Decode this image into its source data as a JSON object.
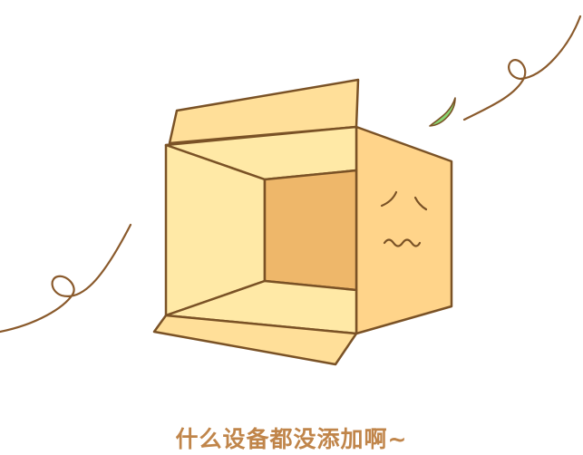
{
  "empty_state": {
    "message": "什么设备都没添加啊~",
    "illustration_icon": "empty-open-box-icon"
  },
  "colors": {
    "message_text": "#c0854a",
    "outline": "#7a5226",
    "box_front": "#ffe9a6",
    "box_flap": "#ffdf99",
    "box_side": "#ffd48a",
    "box_inside_back": "#eeb76a",
    "leaf": "#88d672",
    "curl_line": "#8a5a2c"
  }
}
